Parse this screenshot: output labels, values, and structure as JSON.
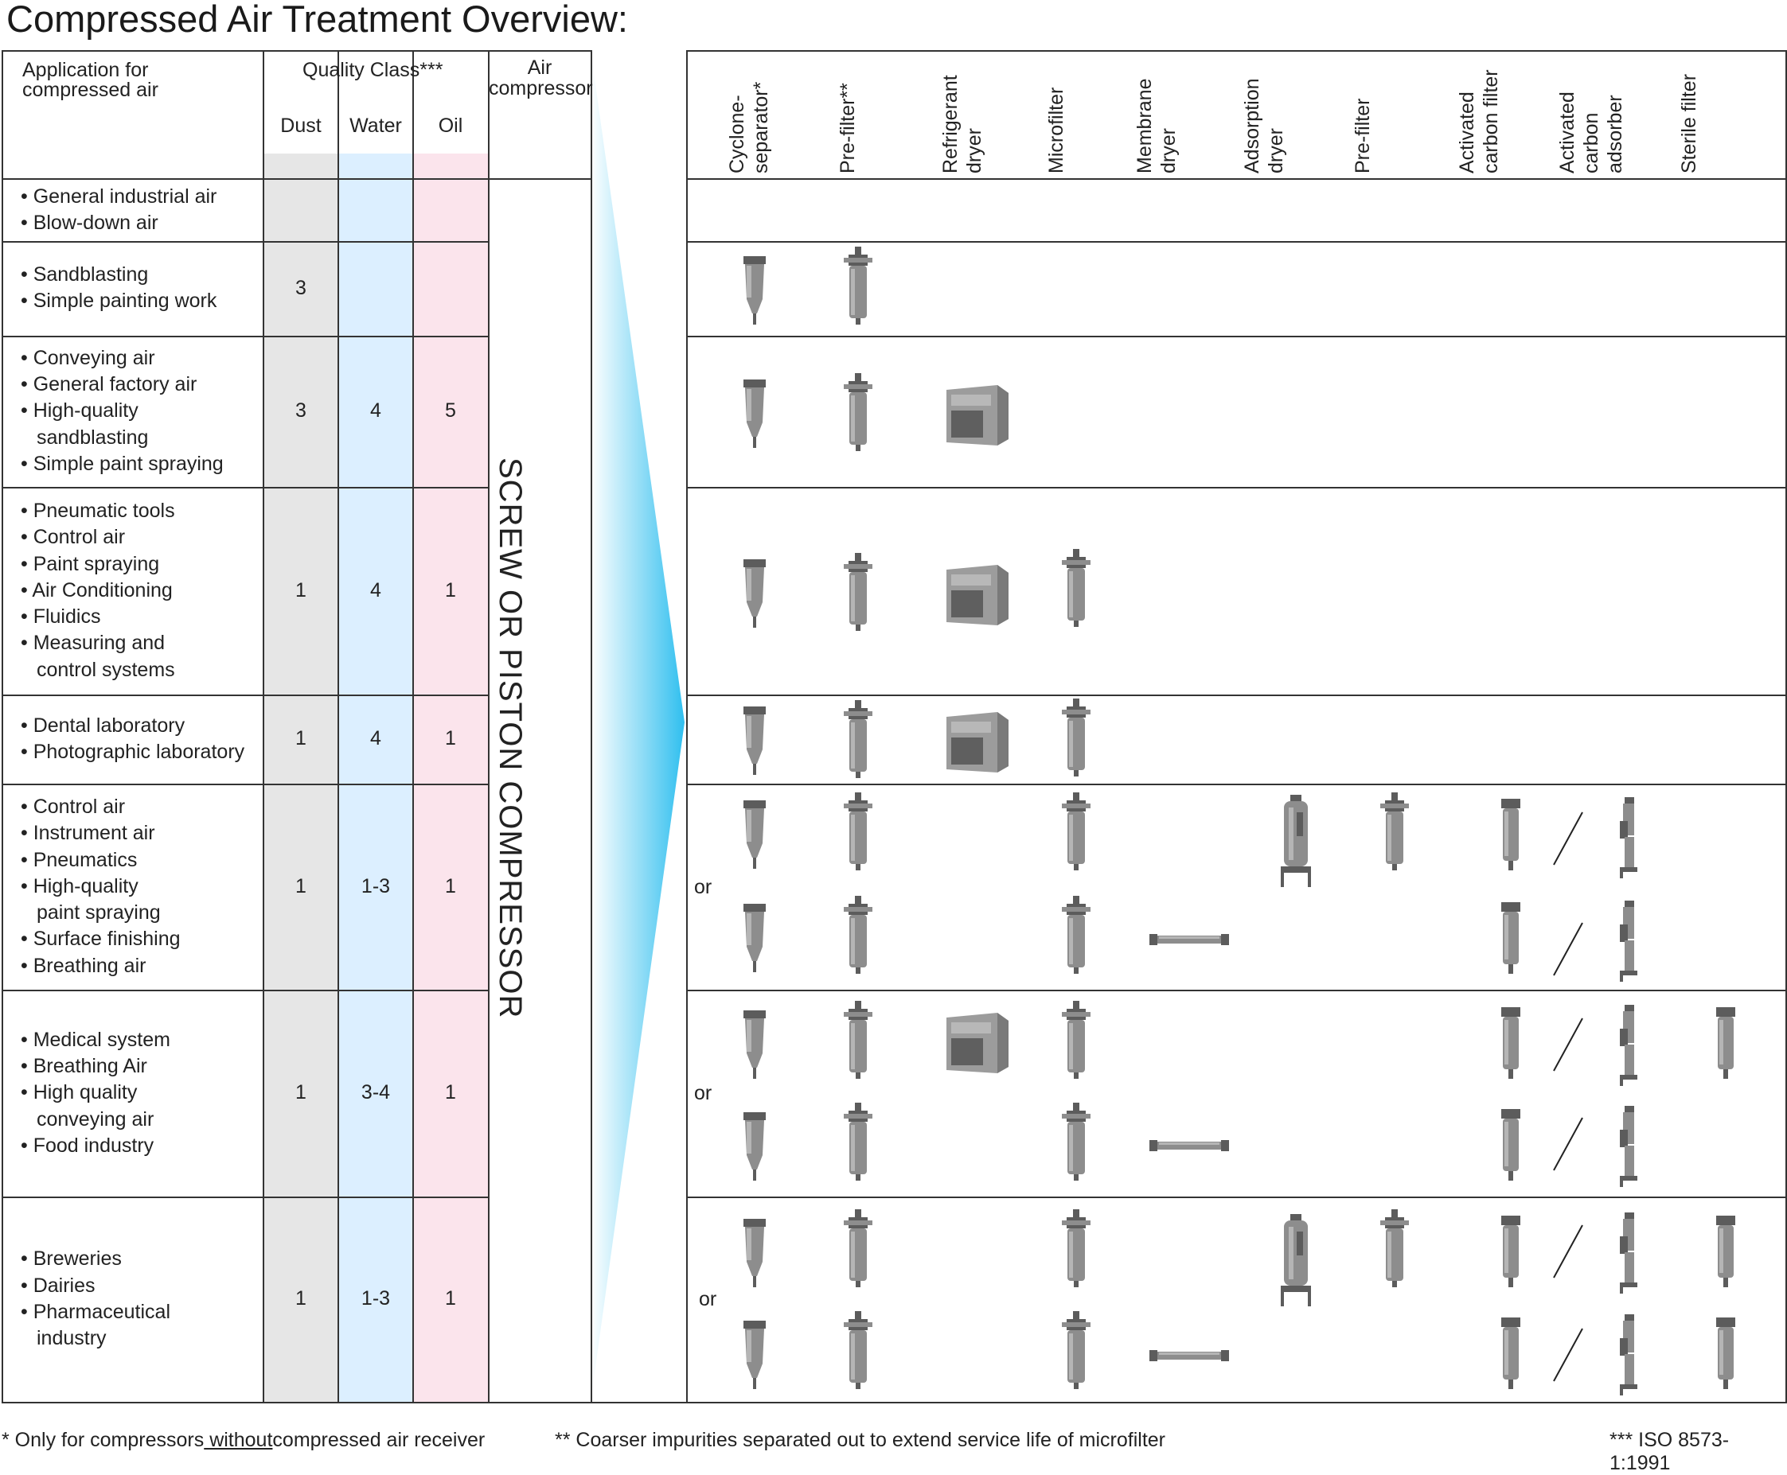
{
  "title": "Compressed Air Treatment Overview:",
  "header": {
    "application": [
      "Application for",
      "compressed air"
    ],
    "quality_class": "Quality Class***",
    "dust": "Dust",
    "water": "Water",
    "oil": "Oil",
    "compressor": [
      "Air",
      "compressor"
    ],
    "compressor_vertical": "SCREW OR PISTON COMPRESSOR"
  },
  "columns": [
    [
      "Cyclone-",
      "separator*"
    ],
    [
      "Pre-filter**"
    ],
    [
      "Refrigerant",
      "dryer"
    ],
    [
      "Microfilter"
    ],
    [
      "Membrane",
      "dryer"
    ],
    [
      "Adsorption",
      "dryer"
    ],
    [
      "Pre-filter"
    ],
    [
      "Activated",
      "carbon filter"
    ],
    [
      "Activated",
      "carbon",
      "adsorber"
    ],
    [
      "Sterile filter"
    ]
  ],
  "rows": [
    {
      "apps": [
        "• General industrial air",
        "• Blow-down air"
      ],
      "dust": "",
      "water": "",
      "oil": "",
      "or": ""
    },
    {
      "apps": [
        "• Sandblasting",
        "• Simple painting work"
      ],
      "dust": "3",
      "water": "",
      "oil": "",
      "or": ""
    },
    {
      "apps": [
        "• Conveying air",
        "• General factory air",
        "• High-quality",
        "  sandblasting",
        "• Simple paint spraying"
      ],
      "dust": "3",
      "water": "4",
      "oil": "5",
      "or": ""
    },
    {
      "apps": [
        "• Pneumatic tools",
        "• Control air",
        "• Paint spraying",
        "• Air Conditioning",
        "• Fluidics",
        "• Measuring and",
        "  control systems"
      ],
      "dust": "1",
      "water": "4",
      "oil": "1",
      "or": ""
    },
    {
      "apps": [
        "• Dental laboratory",
        "• Photographic laboratory"
      ],
      "dust": "1",
      "water": "4",
      "oil": "1",
      "or": ""
    },
    {
      "apps": [
        "• Control air",
        "• Instrument air",
        "• Pneumatics",
        "• High-quality",
        "  paint spraying",
        "• Surface finishing",
        "• Breathing air"
      ],
      "dust": "1",
      "water": "1-3",
      "oil": "1",
      "or": "or"
    },
    {
      "apps": [
        "• Medical system",
        "• Breathing Air",
        "• High quality",
        "  conveying air",
        "• Food industry"
      ],
      "dust": "1",
      "water": "3-4",
      "oil": "1",
      "or": "or"
    },
    {
      "apps": [
        "• Breweries",
        "• Dairies",
        "• Pharmaceutical",
        "  industry"
      ],
      "dust": "1",
      "water": "1-3",
      "oil": "1",
      "or": "or"
    }
  ],
  "footnotes": {
    "f1_pre": "* Only for compressors",
    "f1_u": " without",
    "f1_post": "compressed air receiver",
    "f2": "** Coarser impurities separated out to extend service life of microfilter",
    "f3": "*** ISO 8573-1:1991"
  },
  "colors": {
    "dust_band": "#e6e6e6",
    "water_band": "#dcefff",
    "oil_band": "#fbe4ec",
    "wedge_accent": "#3cc3f0",
    "lines": "#333333"
  }
}
